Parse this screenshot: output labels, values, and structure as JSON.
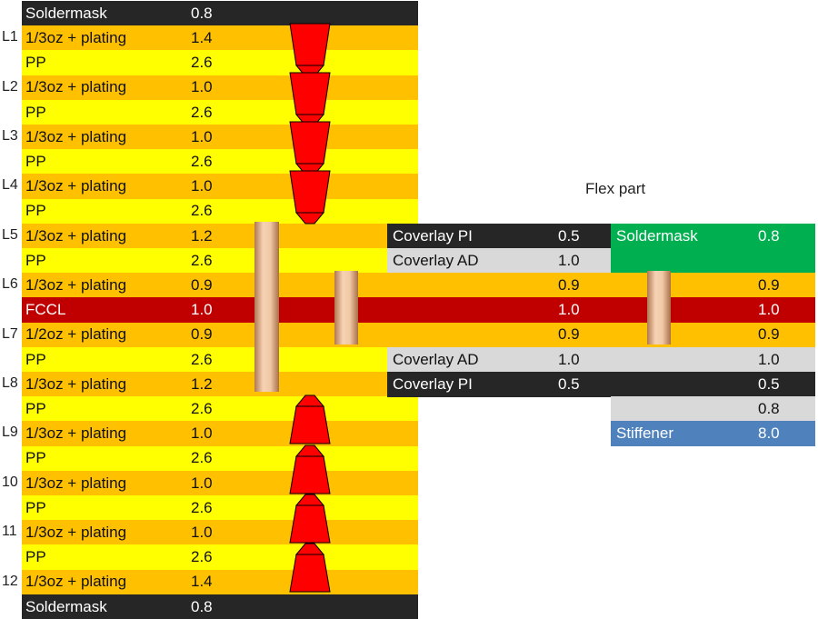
{
  "colors": {
    "orange": "#FFC000",
    "yellow": "#FFFF00",
    "black": "#262626",
    "red": "#C00000",
    "grey": "#D9D9D9",
    "green": "#00B050",
    "blue": "#4F81BD",
    "arrow": "#FF0000",
    "via": "#E8B896"
  },
  "flex_title": "Flex part",
  "rigid_rows": [
    {
      "label": "",
      "name": "Soldermask",
      "value": "0.8",
      "style": "black"
    },
    {
      "label": "L1",
      "name": "1/3oz + plating",
      "value": "1.4",
      "style": "orange"
    },
    {
      "label": "",
      "name": "PP",
      "value": "2.6",
      "style": "yellow"
    },
    {
      "label": "L2",
      "name": "1/3oz + plating",
      "value": "1.0",
      "style": "orange"
    },
    {
      "label": "",
      "name": "PP",
      "value": "2.6",
      "style": "yellow"
    },
    {
      "label": "L3",
      "name": "1/3oz + plating",
      "value": "1.0",
      "style": "orange"
    },
    {
      "label": "",
      "name": "PP",
      "value": "2.6",
      "style": "yellow"
    },
    {
      "label": "L4",
      "name": "1/3oz + plating",
      "value": "1.0",
      "style": "orange"
    },
    {
      "label": "",
      "name": "PP",
      "value": "2.6",
      "style": "yellow"
    },
    {
      "label": "L5",
      "name": "1/3oz + plating",
      "value": "1.2",
      "style": "orange"
    },
    {
      "label": "",
      "name": "PP",
      "value": "2.6",
      "style": "yellow"
    },
    {
      "label": "L6",
      "name": "1/3oz + plating",
      "value": "0.9",
      "style": "orange"
    },
    {
      "label": "",
      "name": "FCCL",
      "value": "1.0",
      "style": "red"
    },
    {
      "label": "L7",
      "name": "1/2oz + plating",
      "value": "0.9",
      "style": "orange"
    },
    {
      "label": "",
      "name": "PP",
      "value": "2.6",
      "style": "yellow"
    },
    {
      "label": "L8",
      "name": "1/3oz + plating",
      "value": "1.2",
      "style": "orange"
    },
    {
      "label": "",
      "name": "PP",
      "value": "2.6",
      "style": "yellow"
    },
    {
      "label": "L9",
      "name": "1/3oz + plating",
      "value": "1.0",
      "style": "orange"
    },
    {
      "label": "",
      "name": "PP",
      "value": "2.6",
      "style": "yellow"
    },
    {
      "label": "10",
      "name": "1/3oz + plating",
      "value": "1.0",
      "style": "orange"
    },
    {
      "label": "",
      "name": "PP",
      "value": "2.6",
      "style": "yellow"
    },
    {
      "label": "11",
      "name": "1/3oz + plating",
      "value": "1.0",
      "style": "orange"
    },
    {
      "label": "",
      "name": "PP",
      "value": "2.6",
      "style": "yellow"
    },
    {
      "label": "12",
      "name": "1/3oz + plating",
      "value": "1.4",
      "style": "orange"
    },
    {
      "label": "",
      "name": "Soldermask",
      "value": "0.8",
      "style": "black"
    }
  ],
  "flex_left": [
    {
      "row": 9,
      "name": "Coverlay PI",
      "value": "0.5",
      "style": "black"
    },
    {
      "row": 10,
      "name": "Coverlay AD",
      "value": "1.0",
      "style": "grey"
    },
    {
      "row": 11,
      "name": "",
      "value": "0.9",
      "style": "orange"
    },
    {
      "row": 12,
      "name": "",
      "value": "1.0",
      "style": "red"
    },
    {
      "row": 13,
      "name": "",
      "value": "0.9",
      "style": "orange"
    },
    {
      "row": 14,
      "name": "Coverlay AD",
      "value": "1.0",
      "style": "grey"
    },
    {
      "row": 15,
      "name": "Coverlay PI",
      "value": "0.5",
      "style": "black"
    }
  ],
  "flex_right": [
    {
      "row": 9,
      "name": "Soldermask",
      "value": "0.8",
      "style": "green",
      "span": 2
    },
    {
      "row": 11,
      "name": "",
      "value": "0.9",
      "style": "orange"
    },
    {
      "row": 12,
      "name": "",
      "value": "1.0",
      "style": "red"
    },
    {
      "row": 13,
      "name": "",
      "value": "0.9",
      "style": "orange"
    },
    {
      "row": 14,
      "name": "",
      "value": "1.0",
      "style": "grey"
    },
    {
      "row": 15,
      "name": "",
      "value": "0.5",
      "style": "black"
    },
    {
      "row": 16,
      "name": "",
      "value": "0.8",
      "style": "grey"
    },
    {
      "row": 17,
      "name": "Stiffener",
      "value": "8.0",
      "style": "blue"
    }
  ]
}
